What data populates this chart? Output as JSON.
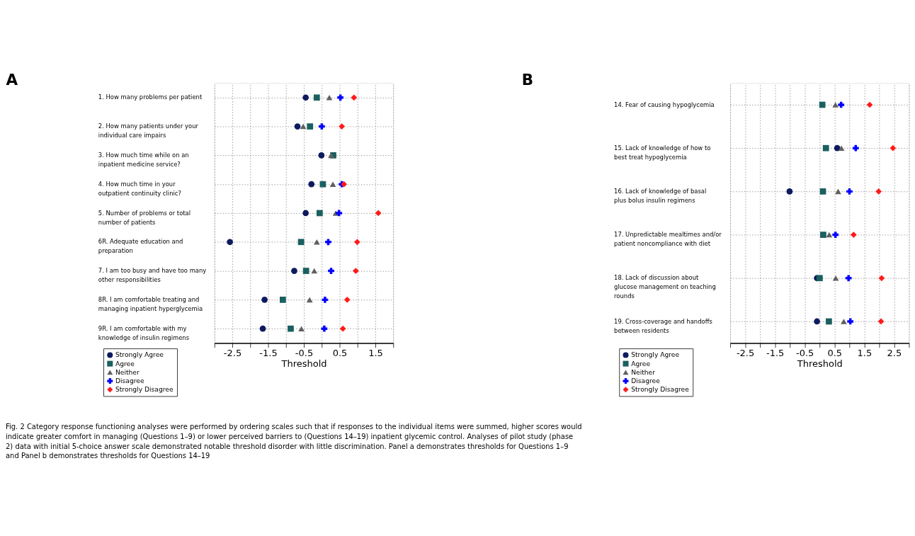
{
  "chart_data": [
    {
      "type": "scatter",
      "orientation": "horizontal",
      "title": "A",
      "xlabel": "Threshold",
      "grid": true,
      "legend": "bottom left",
      "categories": [
        "1. How many problems per patient",
        "2. How many patients under your individual care impairs",
        "3. How much time while on an inpatient medicine service?",
        "4. How much time in your outpatient continuity clinic?",
        "5. Number of problems or total number of patients",
        "6R. Adequate education and preparation",
        "7. I am too busy and have too many other responsibilities",
        "8R. I am comfortable treating and managing inpatient hyperglycemia",
        "9R. I am comfortable with my knowledge of insulin regimens"
      ],
      "xlim": [
        -3,
        2
      ],
      "xticks": [
        {
          "value": -3,
          "label": null
        },
        -2.5,
        {
          "value": -2,
          "label": null
        },
        -1.5,
        {
          "value": -1,
          "label": null
        },
        -0.5,
        {
          "value": 0,
          "label": null
        },
        0.5,
        {
          "value": 1,
          "label": null
        },
        1.5,
        {
          "value": 2,
          "label": null
        }
      ],
      "series": [
        {
          "name": "Strongly Agree",
          "color": "#0d1a5e",
          "marker": "circle",
          "values": [
            -0.45,
            -0.68,
            -0.01,
            -0.29,
            -0.45,
            -2.57,
            -0.77,
            -1.6,
            -1.65
          ]
        },
        {
          "name": "Agree",
          "color": "#1a6060",
          "marker": "square",
          "values": [
            -0.14,
            -0.33,
            0.32,
            0.03,
            -0.06,
            -0.58,
            -0.44,
            -1.09,
            -0.87
          ]
        },
        {
          "name": "Neither",
          "color": "#606060",
          "marker": "triangle",
          "values": [
            0.21,
            -0.52,
            0.26,
            0.31,
            0.39,
            -0.14,
            -0.21,
            -0.34,
            -0.57
          ]
        },
        {
          "name": "Disagree",
          "color": "#0000ff",
          "marker": "cross",
          "values": [
            0.52,
            0.0,
            null,
            0.56,
            0.48,
            0.18,
            0.26,
            0.09,
            0.07
          ]
        },
        {
          "name": "Strongly Disagree",
          "color": "#ff1a1a",
          "marker": "diamond",
          "values": [
            0.9,
            0.56,
            null,
            0.62,
            1.58,
            0.99,
            0.95,
            0.71,
            0.59
          ]
        }
      ],
      "annotations": [
        "Fig. 2 Category response functioning analyses were performed by ordering scales such that if responses to the individual items were summed, higher scores would indicate greater comfort in managing (Questions 1–9) or lower perceived barriers to (Questions 14–19) inpatient glycemic control. Analyses of pilot study (phase 2) data with initial 5-choice answer scale demonstrated notable threshold disorder with little discrimination. Panel a demonstrates thresholds for Questions 1–9 and Panel b demonstrates thresholds for Questions 14–19"
      ]
    },
    {
      "type": "scatter",
      "orientation": "horizontal",
      "title": "B",
      "xlabel": "Threshold",
      "grid": true,
      "legend": "bottom left",
      "categories": [
        "14. Fear of causing hypoglycemia",
        "15. Lack of knowledge of how to best treat hypoglycemia",
        "16. Lack of knowledge of basal plus bolus insulin regimens",
        "17. Unpredictable mealtimes and/or patient noncompliance with diet",
        "18. Lack of discussion about glucose management on teaching rounds",
        "19. Cross-coverage and handoffs between residents"
      ],
      "xlim": [
        -3,
        3
      ],
      "xticks": [
        {
          "value": -3,
          "label": null
        },
        -2.5,
        {
          "value": -2,
          "label": null
        },
        -1.5,
        {
          "value": -1,
          "label": null
        },
        -0.5,
        {
          "value": 0,
          "label": null
        },
        0.5,
        {
          "value": 1,
          "label": null
        },
        1.5,
        {
          "value": 2,
          "label": null
        },
        2.5,
        {
          "value": 3,
          "label": null
        }
      ],
      "series": [
        {
          "name": "Strongly Agree",
          "color": "#0d1a5e",
          "marker": "circle",
          "values": [
            null,
            0.59,
            -1.01,
            null,
            -0.09,
            -0.09
          ]
        },
        {
          "name": "Agree",
          "color": "#1a6060",
          "marker": "square",
          "values": [
            0.09,
            0.21,
            0.11,
            0.12,
            0.0,
            0.31
          ]
        },
        {
          "name": "Neither",
          "color": "#606060",
          "marker": "triangle",
          "values": [
            0.53,
            0.73,
            0.62,
            0.32,
            0.54,
            0.81
          ]
        },
        {
          "name": "Disagree",
          "color": "#0000ff",
          "marker": "cross",
          "values": [
            0.72,
            1.21,
            1.0,
            0.53,
            0.97,
            1.03
          ]
        },
        {
          "name": "Strongly Disagree",
          "color": "#ff1a1a",
          "marker": "diamond",
          "values": [
            1.68,
            2.46,
            1.98,
            1.14,
            2.08,
            2.06
          ]
        }
      ]
    }
  ]
}
